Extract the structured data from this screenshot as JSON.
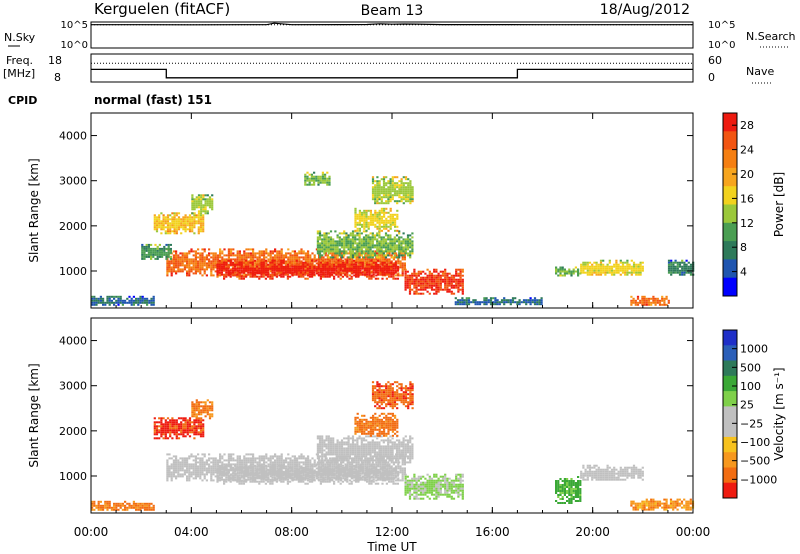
{
  "header": {
    "station": "Kerguelen (fitACF)",
    "beam": "Beam 13",
    "date": "18/Aug/2012"
  },
  "top_panels": {
    "nsky_label": "N.Sky",
    "nsearch_label": "N.Search",
    "nsky_ticks": [
      "10^5",
      "10^0"
    ],
    "nsearch_ticks": [
      "10^5",
      "10^0"
    ],
    "freq_label_line1": "Freq.",
    "freq_label_line2": "[MHz]",
    "freq_ticks": [
      "18",
      "8"
    ],
    "nave_label": "Nave",
    "nave_ticks": [
      "60",
      "0"
    ],
    "cpid_label": "CPID",
    "cpid_text": "normal (fast) 151"
  },
  "chart_data": [
    {
      "type": "line",
      "panel": "noise",
      "ylabel": "N.Sky",
      "y2label": "N.Search",
      "yscale": "log",
      "ylim": [
        1,
        100000
      ],
      "xlim": [
        0,
        24
      ],
      "series": [
        {
          "name": "N.Sky",
          "x": [
            0,
            2,
            4,
            6,
            7,
            7.3,
            8,
            10,
            11,
            11.5,
            12,
            12.5,
            13,
            14,
            16,
            18,
            20,
            22,
            24
          ],
          "y": [
            30000,
            30000,
            29000,
            30000,
            30000,
            60000,
            30000,
            31000,
            33000,
            45000,
            38000,
            42000,
            40000,
            32000,
            31000,
            30000,
            30000,
            30000,
            30000
          ]
        },
        {
          "name": "N.Search",
          "x": [
            0,
            24
          ],
          "y": [
            30000,
            30000
          ]
        }
      ]
    },
    {
      "type": "line",
      "panel": "frequency",
      "ylabel": "Freq. [MHz]",
      "y2label": "Nave",
      "ylim": [
        8,
        18
      ],
      "y2lim": [
        0,
        60
      ],
      "xlim": [
        0,
        24
      ],
      "series": [
        {
          "name": "Freq.",
          "x": [
            0,
            3.0,
            3.0,
            17.0,
            17.0,
            24
          ],
          "y": [
            12.5,
            12.5,
            9.5,
            9.5,
            12.5,
            12.5
          ]
        },
        {
          "name": "Nave",
          "x": [
            0,
            24
          ],
          "y": [
            40,
            40
          ]
        }
      ]
    },
    {
      "type": "heatmap",
      "panel": "power",
      "ylabel": "Slant Range [km]",
      "xlabel": "Time UT",
      "xlim": [
        0,
        24
      ],
      "ylim": [
        180,
        4500
      ],
      "x_ticks": [
        "00:00",
        "04:00",
        "08:00",
        "12:00",
        "16:00",
        "20:00",
        "00:00"
      ],
      "y_ticks": [
        1000,
        2000,
        3000,
        4000
      ],
      "colorbar_label": "Power [dB]",
      "colorbar_ticks": [
        4,
        8,
        12,
        16,
        20,
        24,
        28
      ],
      "colorbar_range": [
        0,
        30
      ],
      "colorbar_colors": [
        "#0000ff",
        "#1f55b0",
        "#2e7a5a",
        "#4a9e52",
        "#9bc83a",
        "#f2d21e",
        "#f7a51e",
        "#f57f12",
        "#f25512",
        "#ee1b10"
      ],
      "regions": [
        {
          "t": [
            3.0,
            12.5
          ],
          "r": [
            900,
            1500
          ],
          "value": 24
        },
        {
          "t": [
            5.0,
            12.2
          ],
          "r": [
            850,
            1250
          ],
          "value": 28
        },
        {
          "t": [
            12.5,
            14.8
          ],
          "r": [
            500,
            1050
          ],
          "value": 27
        },
        {
          "t": [
            2.0,
            3.2
          ],
          "r": [
            1250,
            1600
          ],
          "value": 10
        },
        {
          "t": [
            2.5,
            4.5
          ],
          "r": [
            1850,
            2300
          ],
          "value": 18
        },
        {
          "t": [
            4.0,
            4.8
          ],
          "r": [
            2300,
            2700
          ],
          "value": 14
        },
        {
          "t": [
            9.0,
            12.8
          ],
          "r": [
            1300,
            1900
          ],
          "value": 12
        },
        {
          "t": [
            10.5,
            12.2
          ],
          "r": [
            1900,
            2400
          ],
          "value": 16
        },
        {
          "t": [
            11.2,
            12.8
          ],
          "r": [
            2500,
            3100
          ],
          "value": 14
        },
        {
          "t": [
            8.5,
            9.5
          ],
          "r": [
            2900,
            3200
          ],
          "value": 12
        },
        {
          "t": [
            19.5,
            22.0
          ],
          "r": [
            900,
            1250
          ],
          "value": 16
        },
        {
          "t": [
            18.5,
            19.5
          ],
          "r": [
            900,
            1100
          ],
          "value": 12
        },
        {
          "t": [
            23.0,
            24.0
          ],
          "r": [
            900,
            1250
          ],
          "value": 8
        },
        {
          "t": [
            0.0,
            2.5
          ],
          "r": [
            250,
            450
          ],
          "value": 6
        },
        {
          "t": [
            21.5,
            23.0
          ],
          "r": [
            250,
            450
          ],
          "value": 24
        },
        {
          "t": [
            14.5,
            18.0
          ],
          "r": [
            250,
            420
          ],
          "value": 6
        }
      ]
    },
    {
      "type": "heatmap",
      "panel": "velocity",
      "ylabel": "Slant Range [km]",
      "xlabel": "Time UT",
      "xlim": [
        0,
        24
      ],
      "ylim": [
        180,
        4500
      ],
      "x_ticks": [
        "00:00",
        "04:00",
        "08:00",
        "12:00",
        "16:00",
        "20:00",
        "00:00"
      ],
      "y_ticks": [
        1000,
        2000,
        3000,
        4000
      ],
      "colorbar_label": "Velocity [m s⁻¹]",
      "colorbar_ticks": [
        "1000",
        "500",
        "100",
        "25",
        "−25",
        "−100",
        "−500",
        "−1000"
      ],
      "colorbar_colors": [
        "#1f2fc8",
        "#2b5fb8",
        "#2e7a5a",
        "#3aa836",
        "#7fd04a",
        "#c0c0c0",
        "#c0c0c0",
        "#f7c21e",
        "#f7981e",
        "#f26d12",
        "#ee1b10"
      ],
      "regions": [
        {
          "t": [
            3.0,
            12.5
          ],
          "r": [
            900,
            1500
          ],
          "value": 0
        },
        {
          "t": [
            5.0,
            12.2
          ],
          "r": [
            850,
            1250
          ],
          "value": 0
        },
        {
          "t": [
            12.5,
            14.8
          ],
          "r": [
            500,
            1050
          ],
          "value": 60
        },
        {
          "t": [
            2.5,
            4.5
          ],
          "r": [
            1850,
            2300
          ],
          "value": -300
        },
        {
          "t": [
            4.0,
            4.8
          ],
          "r": [
            2300,
            2700
          ],
          "value": -120
        },
        {
          "t": [
            9.0,
            12.8
          ],
          "r": [
            1300,
            1900
          ],
          "value": 0
        },
        {
          "t": [
            10.5,
            12.2
          ],
          "r": [
            1900,
            2400
          ],
          "value": -150
        },
        {
          "t": [
            11.2,
            12.8
          ],
          "r": [
            2500,
            3100
          ],
          "value": -200
        },
        {
          "t": [
            18.5,
            19.5
          ],
          "r": [
            400,
            1000
          ],
          "value": 150
        },
        {
          "t": [
            19.5,
            22.0
          ],
          "r": [
            900,
            1250
          ],
          "value": 0
        },
        {
          "t": [
            0.0,
            2.5
          ],
          "r": [
            250,
            450
          ],
          "value": -120
        },
        {
          "t": [
            21.5,
            24.0
          ],
          "r": [
            250,
            500
          ],
          "value": -80
        }
      ]
    }
  ]
}
